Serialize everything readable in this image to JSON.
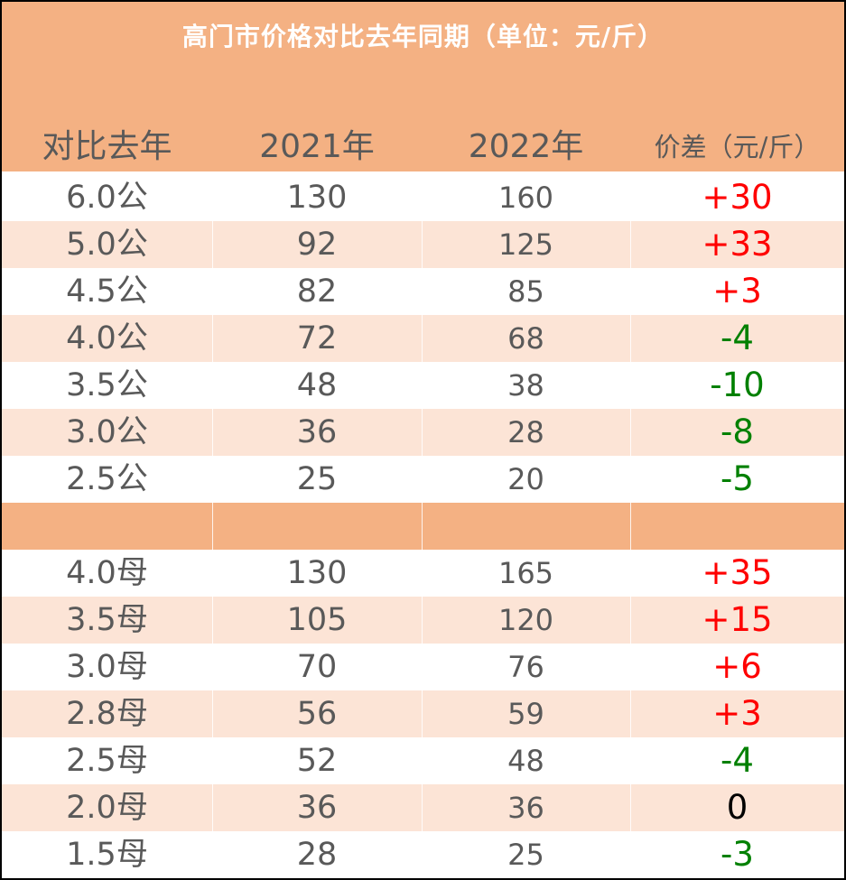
{
  "title": "高门市价格对比去年同期（单位：元/斤）",
  "headers": [
    "对比去年",
    "2021年",
    "2022年",
    "价差（元/斤）"
  ],
  "colors": {
    "header_band": "#f4b183",
    "stripe": "#fce4d6",
    "text": "#595959",
    "positive": "#ff0000",
    "negative": "#008000",
    "zero": "#000000"
  },
  "group_male": [
    {
      "spec": "6.0公",
      "y2021": "130",
      "y2022": "160",
      "diff": "+30",
      "sign": "positive"
    },
    {
      "spec": "5.0公",
      "y2021": "92",
      "y2022": "125",
      "diff": "+33",
      "sign": "positive"
    },
    {
      "spec": "4.5公",
      "y2021": "82",
      "y2022": "85",
      "diff": "+3",
      "sign": "positive"
    },
    {
      "spec": "4.0公",
      "y2021": "72",
      "y2022": "68",
      "diff": "-4",
      "sign": "negative"
    },
    {
      "spec": "3.5公",
      "y2021": "48",
      "y2022": "38",
      "diff": "-10",
      "sign": "negative"
    },
    {
      "spec": "3.0公",
      "y2021": "36",
      "y2022": "28",
      "diff": "-8",
      "sign": "negative"
    },
    {
      "spec": "2.5公",
      "y2021": "25",
      "y2022": "20",
      "diff": "-5",
      "sign": "negative"
    }
  ],
  "group_female": [
    {
      "spec": "4.0母",
      "y2021": "130",
      "y2022": "165",
      "diff": "+35",
      "sign": "positive"
    },
    {
      "spec": "3.5母",
      "y2021": "105",
      "y2022": "120",
      "diff": "+15",
      "sign": "positive"
    },
    {
      "spec": "3.0母",
      "y2021": "70",
      "y2022": "76",
      "diff": "+6",
      "sign": "positive"
    },
    {
      "spec": "2.8母",
      "y2021": "56",
      "y2022": "59",
      "diff": "+3",
      "sign": "positive"
    },
    {
      "spec": "2.5母",
      "y2021": "52",
      "y2022": "48",
      "diff": "-4",
      "sign": "negative"
    },
    {
      "spec": "2.0母",
      "y2021": "36",
      "y2022": "36",
      "diff": "0",
      "sign": "zero"
    },
    {
      "spec": "1.5母",
      "y2021": "28",
      "y2022": "25",
      "diff": "-3",
      "sign": "negative"
    }
  ]
}
